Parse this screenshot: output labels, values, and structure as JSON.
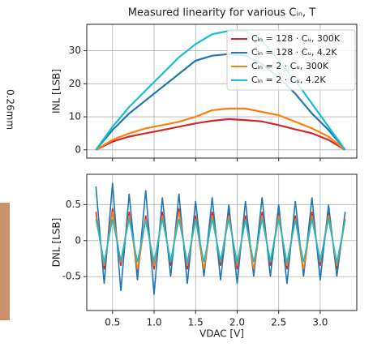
{
  "side_label": "0.26mm",
  "chart_data": [
    {
      "type": "line",
      "title": "Measured linearity for various Cᵢₙ, T",
      "y_label": "INL [LSB]",
      "x": [
        0.3,
        0.5,
        0.7,
        0.9,
        1.1,
        1.3,
        1.5,
        1.7,
        1.9,
        2.1,
        2.3,
        2.5,
        2.7,
        2.9,
        3.1,
        3.3
      ],
      "series": [
        {
          "name": "Cᵢₙ = 128 · Cᵤ, 300K",
          "color": "#d62728",
          "values": [
            0,
            2.5,
            4,
            5,
            6,
            7,
            8,
            8.8,
            9.3,
            9,
            8.6,
            7.5,
            6.2,
            5,
            3,
            0
          ]
        },
        {
          "name": "Cᵢₙ = 128 · Cᵤ, 4.2K",
          "color": "#1f77b4",
          "values": [
            0,
            6,
            11,
            15,
            19,
            23,
            27,
            28.5,
            29,
            28.5,
            26,
            22,
            17,
            11,
            6,
            0
          ]
        },
        {
          "name": "Cᵢₙ = 2 · Cᵤ, 300K",
          "color": "#ff7f0e",
          "values": [
            0,
            3,
            5,
            6.5,
            7.5,
            8.5,
            10,
            12,
            12.5,
            12.5,
            11.5,
            10.5,
            8.5,
            6.5,
            4,
            0
          ]
        },
        {
          "name": "Cᵢₙ = 2 · Cᵤ, 4.2K",
          "color": "#17becf",
          "values": [
            0,
            7,
            13,
            18,
            23,
            28,
            32,
            35,
            36,
            36,
            33,
            27,
            21,
            14,
            7,
            0
          ]
        }
      ],
      "xlim": [
        0.19,
        3.44
      ],
      "ylim": [
        -2.5,
        38
      ],
      "yticks": [
        0,
        10,
        20,
        30
      ],
      "xticks": [
        0.5,
        1.0,
        1.5,
        2.0,
        2.5,
        3.0
      ],
      "grid": true,
      "legend": "upper right"
    },
    {
      "type": "line",
      "y_label": "DNL [LSB]",
      "x_label": "VDAC [V]",
      "x": [
        0.3,
        0.4,
        0.5,
        0.6,
        0.7,
        0.8,
        0.9,
        1.0,
        1.1,
        1.2,
        1.3,
        1.4,
        1.5,
        1.6,
        1.7,
        1.8,
        1.9,
        2.0,
        2.1,
        2.2,
        2.3,
        2.4,
        2.5,
        2.6,
        2.7,
        2.8,
        2.9,
        3.0,
        3.1,
        3.2,
        3.3
      ],
      "series": [
        {
          "name": "Cᵢₙ = 128 · Cᵤ, 300K",
          "color": "#d62728",
          "values": [
            0.4,
            -0.4,
            0.45,
            -0.35,
            0.4,
            -0.45,
            0.35,
            -0.4,
            0.4,
            -0.35,
            0.45,
            -0.4,
            0.35,
            -0.45,
            0.4,
            -0.35,
            0.4,
            -0.4,
            0.35,
            -0.45,
            0.4,
            -0.35,
            0.4,
            -0.4,
            0.35,
            -0.45,
            0.4,
            -0.35,
            0.4,
            -0.4,
            0.3
          ]
        },
        {
          "name": "Cᵢₙ = 128 · Cᵤ, 4.2K",
          "color": "#1f77b4",
          "values": [
            0.75,
            -0.6,
            0.8,
            -0.7,
            0.65,
            -0.55,
            0.7,
            -0.75,
            0.6,
            -0.5,
            0.65,
            -0.6,
            0.55,
            -0.5,
            0.6,
            -0.55,
            0.5,
            -0.6,
            0.55,
            -0.5,
            0.6,
            -0.5,
            0.5,
            -0.6,
            0.55,
            -0.5,
            0.6,
            -0.55,
            0.5,
            -0.5,
            0.4
          ]
        },
        {
          "name": "Cᵢₙ = 2 · Cᵤ, 300K",
          "color": "#ff7f0e",
          "values": [
            0.35,
            -0.35,
            0.4,
            -0.3,
            0.35,
            -0.4,
            0.3,
            -0.35,
            0.35,
            -0.3,
            0.4,
            -0.35,
            0.3,
            -0.4,
            0.35,
            -0.3,
            0.35,
            -0.35,
            0.3,
            -0.4,
            0.35,
            -0.3,
            0.35,
            -0.35,
            0.3,
            -0.4,
            0.35,
            -0.3,
            0.35,
            -0.35,
            0.3
          ]
        },
        {
          "name": "Cᵢₙ = 2 · Cᵤ, 4.2K",
          "color": "#17becf",
          "values": [
            0.3,
            -0.3,
            0.3,
            -0.28,
            0.3,
            -0.3,
            0.28,
            -0.3,
            0.3,
            -0.28,
            0.3,
            -0.3,
            0.28,
            -0.3,
            0.3,
            -0.28,
            0.3,
            -0.3,
            0.28,
            -0.3,
            0.3,
            -0.28,
            0.3,
            -0.3,
            0.28,
            -0.3,
            0.3,
            -0.28,
            0.3,
            -0.3,
            0.28
          ]
        }
      ],
      "xlim": [
        0.19,
        3.44
      ],
      "ylim": [
        -0.97,
        0.92
      ],
      "yticks": [
        0.5,
        0.0,
        -0.5
      ],
      "xticks": [
        0.5,
        1.0,
        1.5,
        2.0,
        2.5,
        3.0
      ],
      "grid": true
    }
  ]
}
